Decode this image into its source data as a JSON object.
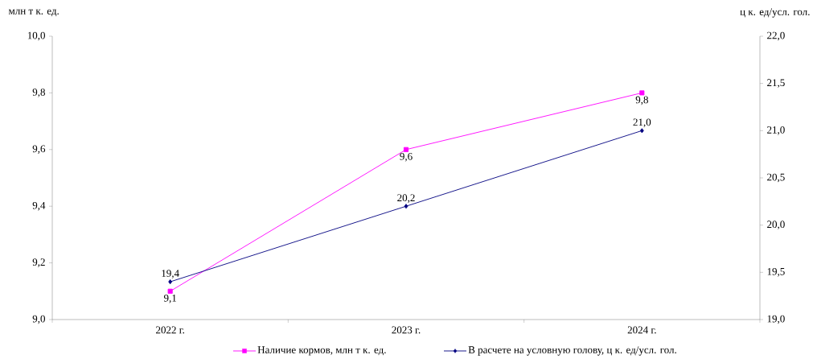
{
  "chart_data": {
    "type": "line",
    "ylabel": "млн т к. ед.",
    "y2label": "ц к. ед/усл. гол.",
    "categories": [
      "2022 г.",
      "2023 г.",
      "2024 г."
    ],
    "ylim": [
      9.0,
      10.0
    ],
    "yticks": [
      {
        "value": 9.0,
        "label": "9,0"
      },
      {
        "value": 9.2,
        "label": "9,2"
      },
      {
        "value": 9.4,
        "label": "9,4"
      },
      {
        "value": 9.6,
        "label": "9,6"
      },
      {
        "value": 9.8,
        "label": "9,8"
      },
      {
        "value": 10.0,
        "label": "10,0"
      }
    ],
    "y2lim": [
      19.0,
      22.0
    ],
    "y2ticks": [
      {
        "value": 19.0,
        "label": "19,0"
      },
      {
        "value": 19.5,
        "label": "19,5"
      },
      {
        "value": 20.0,
        "label": "20,0"
      },
      {
        "value": 20.5,
        "label": "20,5"
      },
      {
        "value": 21.0,
        "label": "21,0"
      },
      {
        "value": 21.5,
        "label": "21,5"
      },
      {
        "value": 22.0,
        "label": "22,0"
      }
    ],
    "legend": "bottom",
    "grid": false,
    "series": [
      {
        "name": "Наличие кормов, млн т к. ед.",
        "color": "#ff00ff",
        "marker": "square",
        "values": [
          9.1,
          9.6,
          9.8
        ],
        "value_labels": [
          "9,1",
          "9,6",
          "9,8"
        ]
      },
      {
        "name": "В расчете на условную голову, ц к. ед/усл. гол.",
        "color": "#000080",
        "marker": "diamond",
        "axis": "y2",
        "values": [
          19.4,
          20.2,
          21.0
        ],
        "value_labels": [
          "19,4",
          "20,2",
          "21,0"
        ]
      }
    ]
  }
}
